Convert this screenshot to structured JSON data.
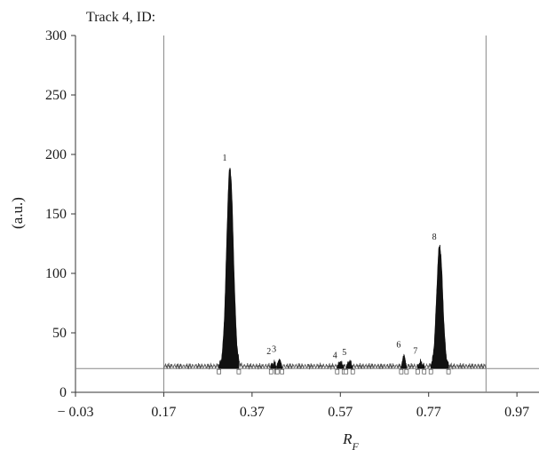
{
  "chart_data": {
    "type": "line",
    "title": "Track 4, ID:",
    "xlabel": "R",
    "xlabel_subscript": "F",
    "ylabel": "(a.u.)",
    "xlim": [
      -0.03,
      1.02
    ],
    "ylim": [
      0,
      300
    ],
    "xticks": [
      -0.03,
      0.17,
      0.37,
      0.57,
      0.77,
      0.97
    ],
    "xtick_labels": [
      "− 0.03",
      "0.17",
      "0.37",
      "0.57",
      "0.77",
      "0.97"
    ],
    "yticks": [
      0,
      50,
      100,
      150,
      200,
      250,
      300
    ],
    "ytick_labels": [
      "0",
      "50",
      "100",
      "150",
      "200",
      "250",
      "300"
    ],
    "baseline": 20,
    "scan_range": [
      0.17,
      0.9
    ],
    "noise_level": 22,
    "peaks": [
      {
        "label": "1",
        "x": 0.32,
        "height": 188,
        "start": 0.295,
        "end": 0.34
      },
      {
        "label": "2",
        "x": 0.42,
        "height": 25,
        "start": 0.413,
        "end": 0.425
      },
      {
        "label": "3",
        "x": 0.432,
        "height": 28,
        "start": 0.427,
        "end": 0.438
      },
      {
        "label": "4",
        "x": 0.57,
        "height": 25,
        "start": 0.563,
        "end": 0.578
      },
      {
        "label": "5",
        "x": 0.591,
        "height": 26,
        "start": 0.583,
        "end": 0.598
      },
      {
        "label": "6",
        "x": 0.714,
        "height": 32,
        "start": 0.708,
        "end": 0.72
      },
      {
        "label": "7",
        "x": 0.752,
        "height": 25,
        "start": 0.745,
        "end": 0.76
      },
      {
        "label": "8",
        "x": 0.795,
        "height": 123,
        "start": 0.775,
        "end": 0.815
      }
    ],
    "grid": false,
    "colors": {
      "peak_fill": "#111111",
      "trace": "#555555",
      "axis": "#333333",
      "guide": "#888888"
    }
  }
}
